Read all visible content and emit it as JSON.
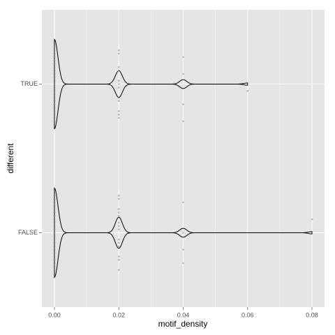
{
  "chart_data": {
    "type": "violin",
    "orientation": "horizontal",
    "x_label": "motif_density",
    "y_label": "different",
    "categories": [
      "FALSE",
      "TRUE"
    ],
    "series": [
      {
        "name": "FALSE",
        "color": "#808080",
        "values": [
          0,
          0,
          0,
          0,
          0,
          0,
          0,
          0,
          0,
          0,
          0,
          0,
          0,
          0,
          0,
          0,
          0,
          0,
          0,
          0,
          0,
          0,
          0,
          0,
          0,
          0,
          0,
          0,
          0,
          0,
          0,
          0,
          0,
          0,
          0,
          0,
          0,
          0,
          0,
          0,
          0.02,
          0.02,
          0.02,
          0.02,
          0.02,
          0.02,
          0.02,
          0.02,
          0.02,
          0.02,
          0.02,
          0.02,
          0.02,
          0.02,
          0.04,
          0.04,
          0.04,
          0.04,
          0.08
        ]
      },
      {
        "name": "TRUE",
        "color": "#808080",
        "values": [
          0,
          0,
          0,
          0,
          0,
          0,
          0,
          0,
          0,
          0,
          0,
          0,
          0,
          0,
          0,
          0,
          0,
          0,
          0,
          0,
          0,
          0,
          0,
          0,
          0,
          0,
          0,
          0,
          0,
          0,
          0,
          0,
          0,
          0,
          0,
          0,
          0,
          0,
          0,
          0,
          0.02,
          0.02,
          0.02,
          0.02,
          0.02,
          0.02,
          0.02,
          0.02,
          0.02,
          0.02,
          0.02,
          0.02,
          0.04,
          0.04,
          0.04,
          0.04,
          0.06
        ]
      }
    ],
    "xlim": [
      -0.0039,
      0.0839
    ],
    "xticks": [
      {
        "value": 0,
        "label": "0.00"
      },
      {
        "value": 0.02,
        "label": "0.02"
      },
      {
        "value": 0.04,
        "label": "0.04"
      },
      {
        "value": 0.06,
        "label": "0.06"
      },
      {
        "value": 0.08,
        "label": "0.08"
      }
    ],
    "grid": true
  }
}
